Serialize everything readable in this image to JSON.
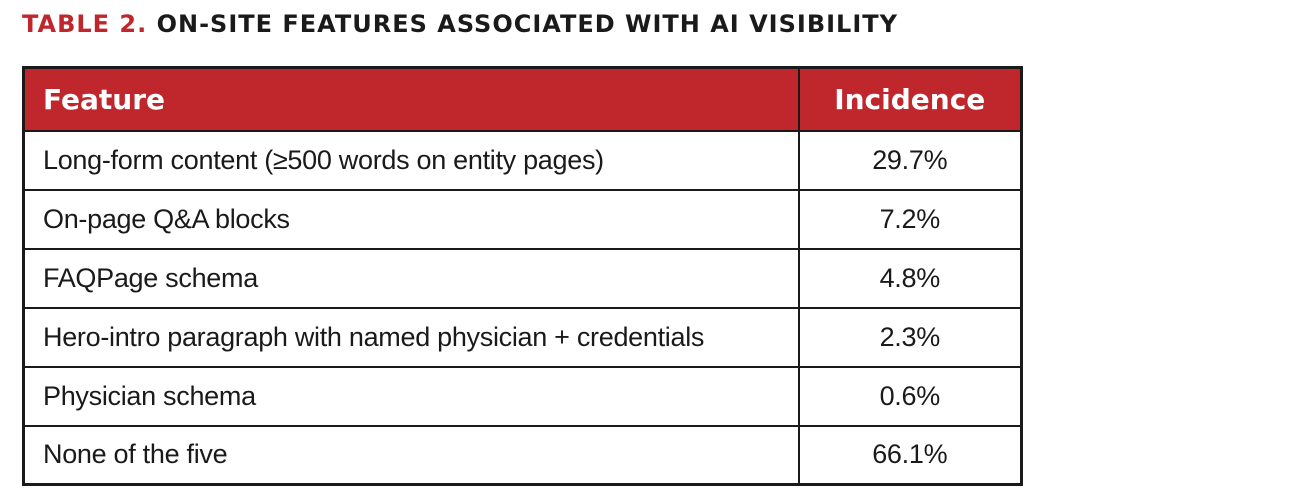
{
  "title": {
    "label": "TABLE 2.",
    "text": "ON-SITE FEATURES ASSOCIATED WITH AI VISIBILITY"
  },
  "colors": {
    "accent": "#c0272d",
    "text": "#1a1a1a",
    "header_text": "#ffffff"
  },
  "chart_data": {
    "type": "table",
    "title": "TABLE 2. ON-SITE FEATURES ASSOCIATED WITH AI VISIBILITY",
    "columns": [
      "Feature",
      "Incidence"
    ],
    "rows": [
      {
        "feature": "Long-form content (≥500 words on entity pages)",
        "incidence": "29.7%"
      },
      {
        "feature": "On-page Q&A blocks",
        "incidence": "7.2%"
      },
      {
        "feature": "FAQPage schema",
        "incidence": "4.8%"
      },
      {
        "feature": "Hero-intro paragraph with named physician + credentials",
        "incidence": "2.3%"
      },
      {
        "feature": "Physician schema",
        "incidence": "0.6%"
      },
      {
        "feature": "None of the five",
        "incidence": "66.1%"
      }
    ]
  }
}
